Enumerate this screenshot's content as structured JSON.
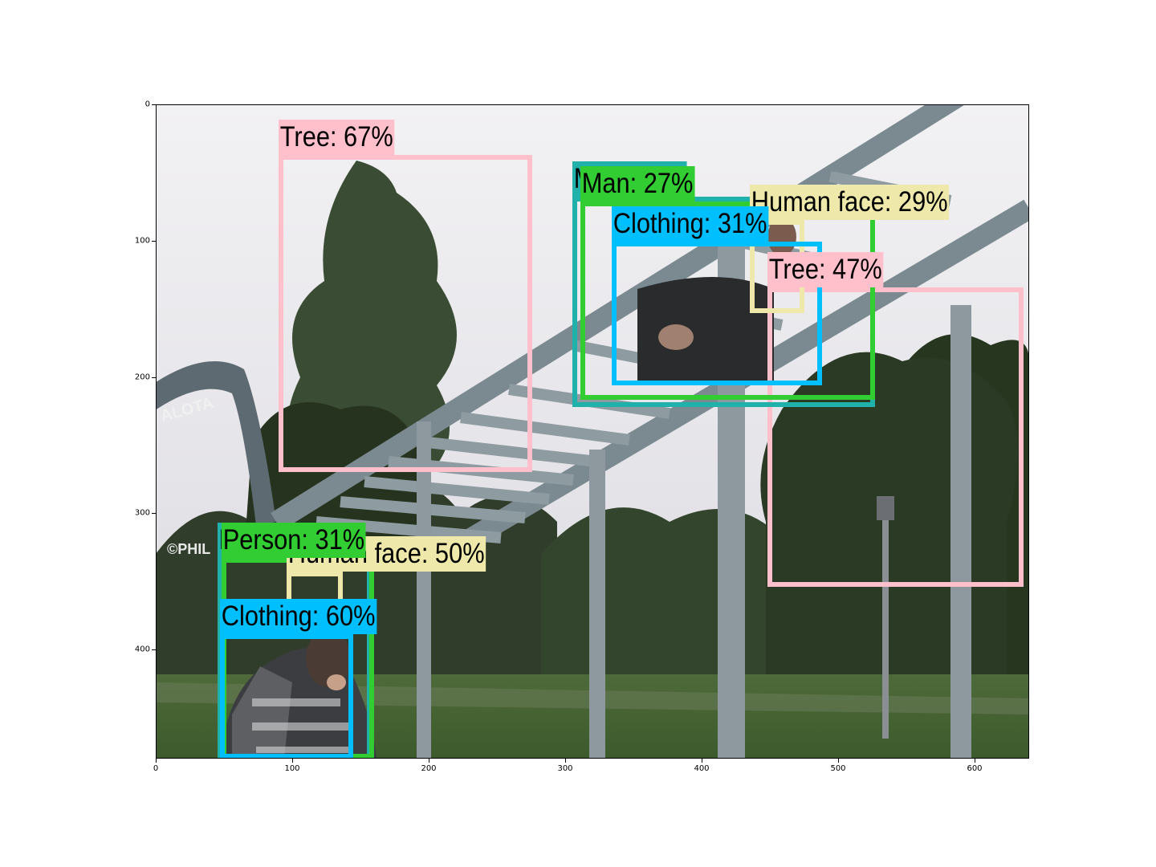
{
  "axes": {
    "xlim": [
      0,
      640
    ],
    "ylim": [
      480,
      0
    ],
    "x_ticks": [
      "0",
      "100",
      "200",
      "300",
      "400",
      "500",
      "600"
    ],
    "y_ticks": [
      "0",
      "100",
      "200",
      "300",
      "400"
    ]
  },
  "photo": {
    "watermark": "©PHIL",
    "arch_text": "ALOTA"
  },
  "detections": [
    {
      "label": "Tree: 67%",
      "color": "#ffc0cb",
      "xmin": 90,
      "ymin": 37,
      "xmax": 276,
      "ymax": 270
    },
    {
      "label": "Tree: 47%",
      "color": "#ffc0cb",
      "xmin": 448,
      "ymin": 134,
      "xmax": 636,
      "ymax": 354
    },
    {
      "label": "Man: 73%",
      "color": "#20b2aa",
      "xmin": 305,
      "ymin": 68,
      "xmax": 527,
      "ymax": 222
    },
    {
      "label": "Man: 27%",
      "color": "#32cd32",
      "xmin": 311,
      "ymin": 71,
      "xmax": 527,
      "ymax": 217
    },
    {
      "label": "Human face: 29%",
      "color": "#eee8aa",
      "xmin": 435,
      "ymin": 85,
      "xmax": 475,
      "ymax": 153
    },
    {
      "label": "Clothing: 31%",
      "color": "#00bfff",
      "xmin": 334,
      "ymin": 101,
      "xmax": 488,
      "ymax": 206
    },
    {
      "label": "Person: 36%",
      "color": "#20b2aa",
      "xmin": 45,
      "ymin": 333,
      "xmax": 158,
      "ymax": 480
    },
    {
      "label": "Human face: 50%",
      "color": "#eee8aa",
      "xmin": 96,
      "ymin": 343,
      "xmax": 137,
      "ymax": 388
    },
    {
      "label": "Person: 31%",
      "color": "#32cd32",
      "xmin": 48,
      "ymin": 333,
      "xmax": 160,
      "ymax": 480
    },
    {
      "label": "Clothing: 60%",
      "color": "#00bfff",
      "xmin": 47,
      "ymin": 389,
      "xmax": 145,
      "ymax": 480
    }
  ]
}
